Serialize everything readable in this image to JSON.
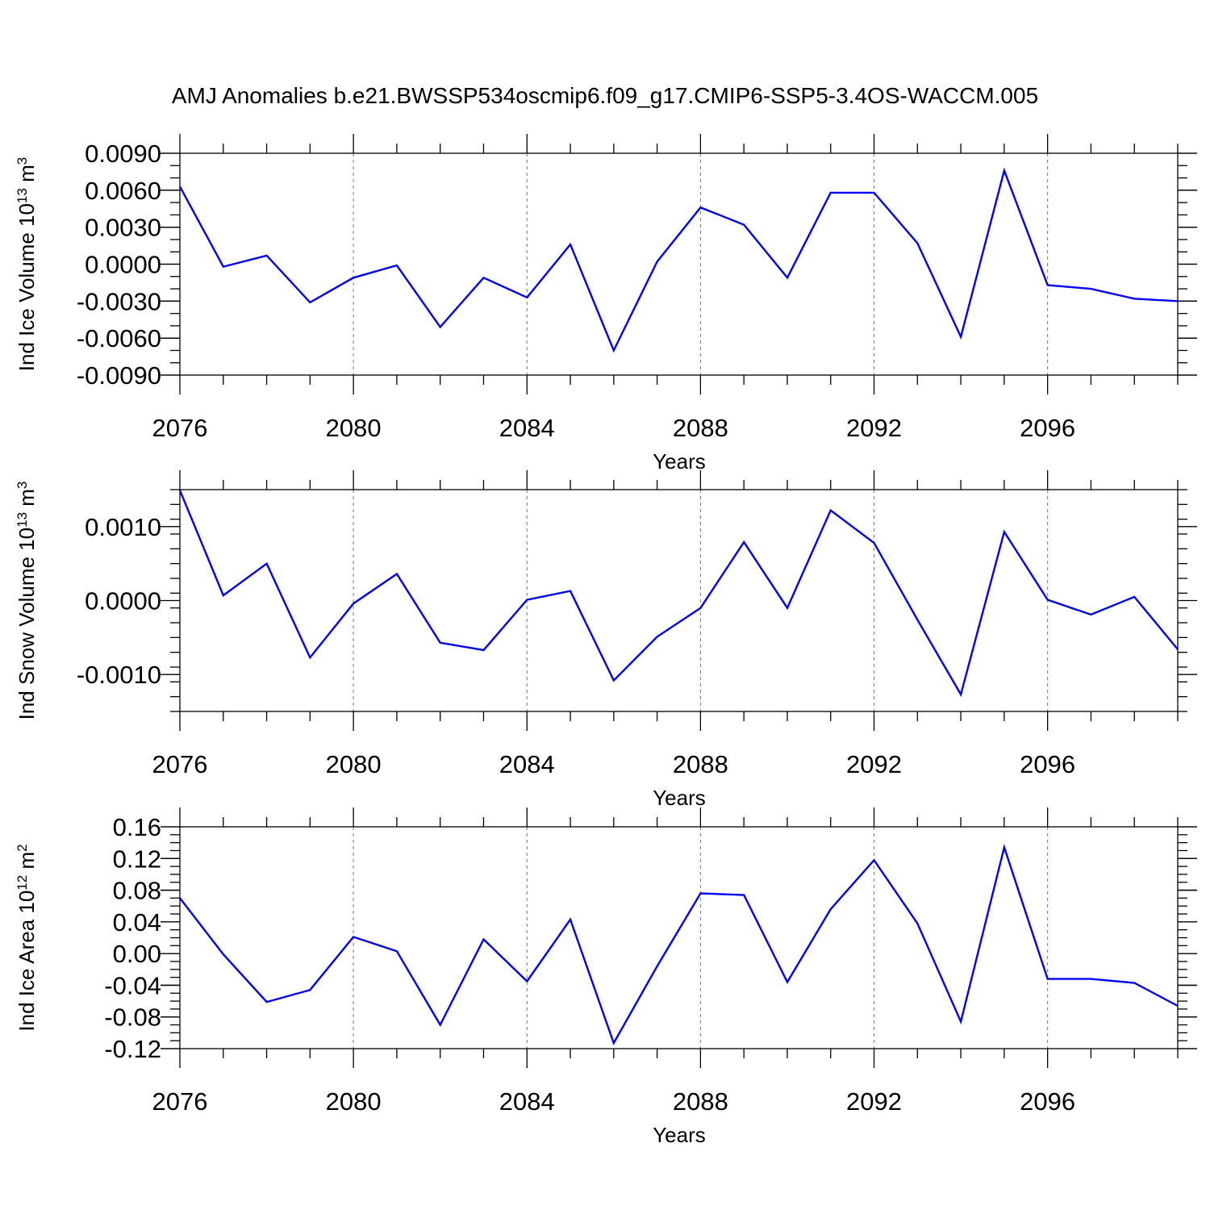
{
  "title": "AMJ Anomalies b.e21.BWSSP534oscmip6.f09_g17.CMIP6-SSP5-3.4OS-WACCM.005",
  "chart_data": [
    {
      "type": "line",
      "title": "",
      "xlabel": "Years",
      "ylabel": {
        "prefix": "Ind Ice Volume 10",
        "exp": "13",
        "unit": " m",
        "unit_exp": "3"
      },
      "xlim": [
        2076,
        2099
      ],
      "ylim": [
        -0.009,
        0.009
      ],
      "x_ticks": [
        2076,
        2080,
        2084,
        2088,
        2092,
        2096
      ],
      "x_tick_labels": [
        "2076",
        "2080",
        "2084",
        "2088",
        "2092",
        "2096"
      ],
      "y_ticks": [
        -0.009,
        -0.006,
        -0.003,
        0,
        0.003,
        0.006,
        0.009
      ],
      "y_tick_labels": [
        "-0.0090",
        "-0.0060",
        "-0.0030",
        "0.0000",
        "0.0030",
        "0.0060",
        "0.0090"
      ],
      "y_minor_step": 0.001,
      "line_color": "#0000ff",
      "grid": "vertical dashed at major x ticks",
      "series": [
        {
          "x": [
            2076,
            2077,
            2078,
            2079,
            2080,
            2081,
            2082,
            2083,
            2084,
            2085,
            2086,
            2087,
            2088,
            2089,
            2090,
            2091,
            2092,
            2093,
            2094,
            2095,
            2096,
            2097,
            2098,
            2099
          ],
          "values": [
            0.0063,
            -0.0002,
            0.0007,
            -0.0031,
            -0.0011,
            -0.0001,
            -0.0051,
            -0.0011,
            -0.0027,
            0.0016,
            -0.007,
            0.0002,
            0.0046,
            0.0032,
            -0.0011,
            0.0058,
            0.0058,
            0.0017,
            -0.0059,
            0.0076,
            -0.0017,
            -0.002,
            -0.0028,
            -0.003
          ]
        }
      ]
    },
    {
      "type": "line",
      "title": "",
      "xlabel": "Years",
      "ylabel": {
        "prefix": "Ind Snow Volume 10",
        "exp": "13",
        "unit": " m",
        "unit_exp": "3"
      },
      "xlim": [
        2076,
        2099
      ],
      "ylim": [
        -0.0015,
        0.0015
      ],
      "x_ticks": [
        2076,
        2080,
        2084,
        2088,
        2092,
        2096
      ],
      "x_tick_labels": [
        "2076",
        "2080",
        "2084",
        "2088",
        "2092",
        "2096"
      ],
      "y_ticks": [
        -0.001,
        0,
        0.001
      ],
      "y_tick_labels": [
        "-0.0010",
        "0.0000",
        "0.0010"
      ],
      "y_minor_step": 0.0002,
      "line_color": "#0000ff",
      "grid": "vertical dashed at major x ticks",
      "series": [
        {
          "x": [
            2076,
            2077,
            2078,
            2079,
            2080,
            2081,
            2082,
            2083,
            2084,
            2085,
            2086,
            2087,
            2088,
            2089,
            2090,
            2091,
            2092,
            2093,
            2094,
            2095,
            2096,
            2097,
            2098,
            2099
          ],
          "values": [
            0.00149,
            7e-05,
            0.0005,
            -0.00077,
            -4e-05,
            0.00036,
            -0.00057,
            -0.00067,
            1e-05,
            0.00013,
            -0.00108,
            -0.00049,
            -0.0001,
            0.00079,
            -0.0001,
            0.00122,
            0.00078,
            -0.00026,
            -0.00127,
            0.00093,
            1e-05,
            -0.00019,
            5e-05,
            -0.00066
          ]
        }
      ]
    },
    {
      "type": "line",
      "title": "",
      "xlabel": "Years",
      "ylabel": {
        "prefix": "Ind Ice Area 10",
        "exp": "12",
        "unit": " m",
        "unit_exp": "2"
      },
      "xlim": [
        2076,
        2099
      ],
      "ylim": [
        -0.12,
        0.16
      ],
      "x_ticks": [
        2076,
        2080,
        2084,
        2088,
        2092,
        2096
      ],
      "x_tick_labels": [
        "2076",
        "2080",
        "2084",
        "2088",
        "2092",
        "2096"
      ],
      "y_ticks": [
        -0.12,
        -0.08,
        -0.04,
        0,
        0.04,
        0.08,
        0.12,
        0.16
      ],
      "y_tick_labels": [
        "-0.12",
        "-0.08",
        "-0.04",
        "0.00",
        "0.04",
        "0.08",
        "0.12",
        "0.16"
      ],
      "y_minor_step": 0.01,
      "line_color": "#0000ff",
      "grid": "vertical dashed at major x ticks",
      "series": [
        {
          "x": [
            2076,
            2077,
            2078,
            2079,
            2080,
            2081,
            2082,
            2083,
            2084,
            2085,
            2086,
            2087,
            2088,
            2089,
            2090,
            2091,
            2092,
            2093,
            2094,
            2095,
            2096,
            2097,
            2098,
            2099
          ],
          "values": [
            0.07,
            -0.001,
            -0.061,
            -0.046,
            0.021,
            0.003,
            -0.09,
            0.018,
            -0.035,
            0.043,
            -0.113,
            -0.016,
            0.076,
            0.074,
            -0.036,
            0.056,
            0.118,
            0.038,
            -0.086,
            0.134,
            -0.032,
            -0.032,
            -0.037,
            -0.066
          ]
        }
      ]
    }
  ]
}
